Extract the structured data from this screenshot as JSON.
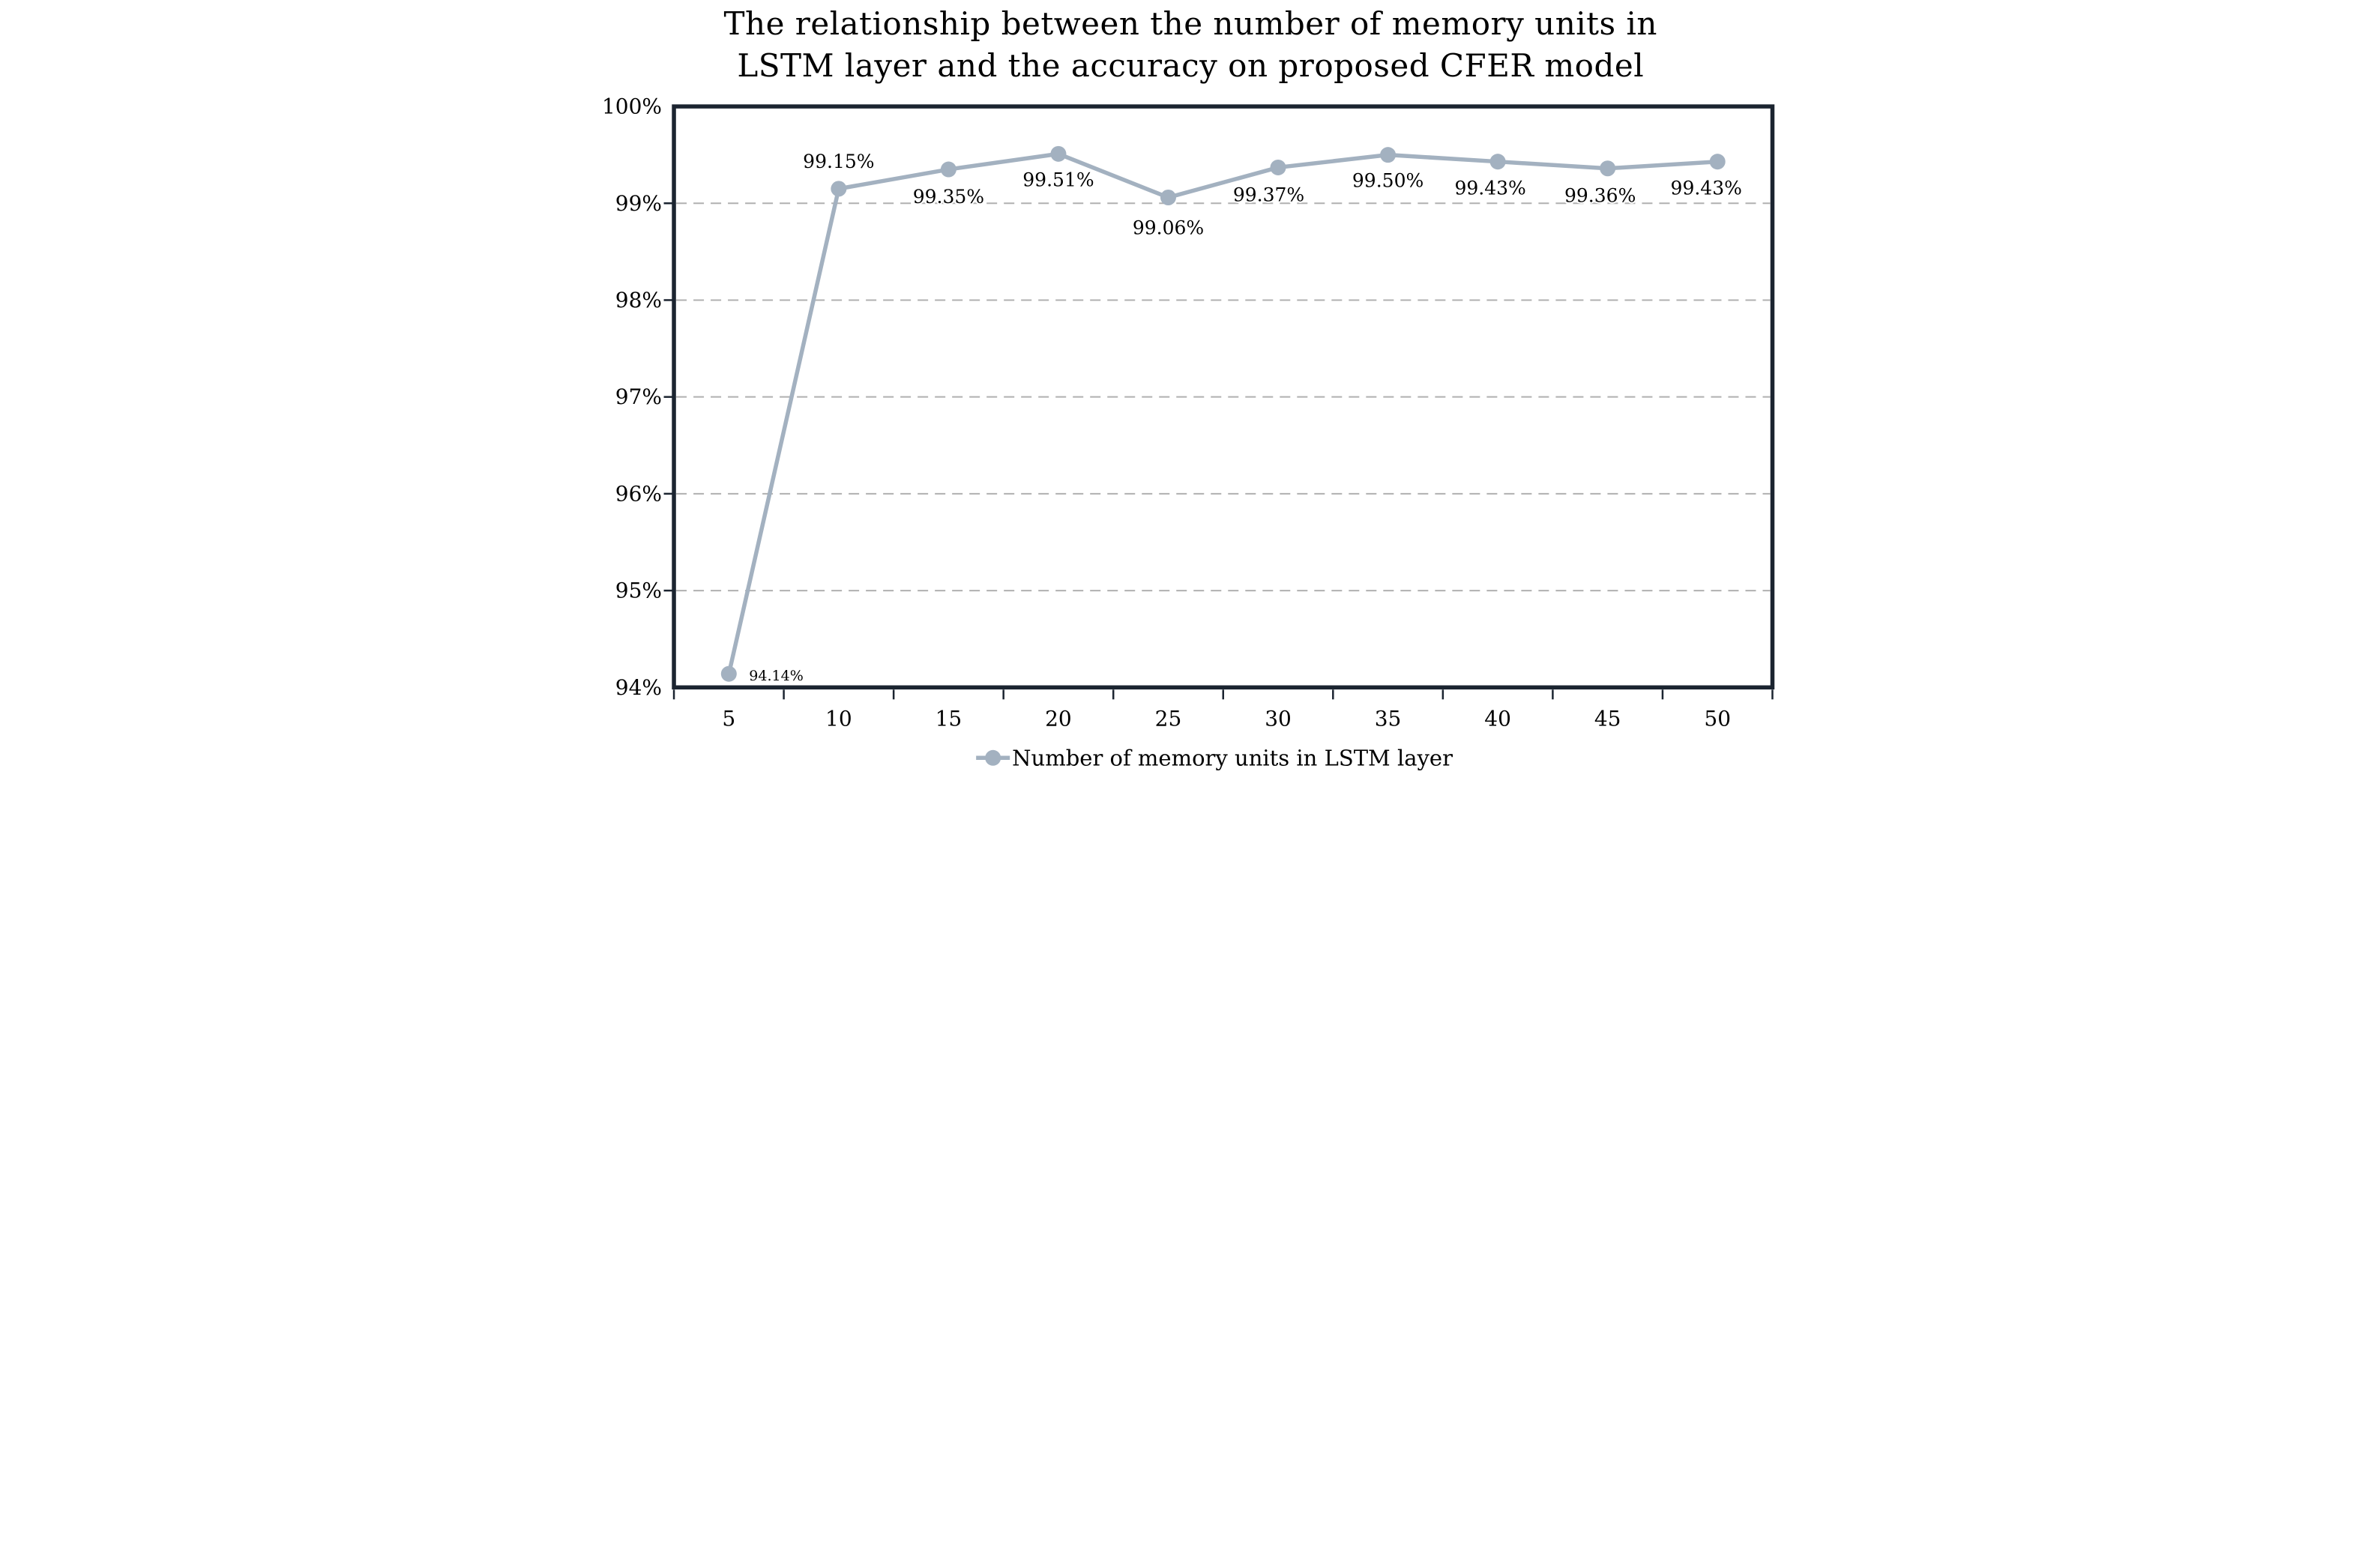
{
  "figure": {
    "title_line1": "The relationship between the number of memory units in",
    "title_line2": "LSTM layer and the accuracy on proposed CFER model"
  },
  "chart_data": {
    "type": "line",
    "title": "The relationship between the number of memory units in LSTM layer and the accuracy on proposed CFER model",
    "categories": [
      "5",
      "10",
      "15",
      "20",
      "25",
      "30",
      "35",
      "40",
      "45",
      "50"
    ],
    "series": [
      {
        "name": "Number of memory units in LSTM layer",
        "values": [
          94.14,
          99.15,
          99.35,
          99.51,
          99.06,
          99.37,
          99.5,
          99.43,
          99.36,
          99.43
        ]
      }
    ],
    "data_labels": [
      "94.14%",
      "99.15%",
      "99.35%",
      "99.51%",
      "99.06%",
      "99.37%",
      "99.50%",
      "99.43%",
      "99.36%",
      "99.43%"
    ],
    "xlabel": "",
    "ylabel": "",
    "ylim": [
      94,
      100
    ],
    "y_ticks": [
      100,
      99,
      98,
      97,
      96,
      95,
      94
    ],
    "y_tick_labels": [
      "100%",
      "99%",
      "98%",
      "97%",
      "96%",
      "95%",
      "94%"
    ],
    "grid": "horizontal-dashed",
    "legend_position": "bottom",
    "legend_label": "Number of memory units in LSTM layer",
    "colors": {
      "series": "#a3b1c0",
      "frame": "#1b2430",
      "gridline": "#b0b0b0",
      "text": "#000000"
    }
  }
}
